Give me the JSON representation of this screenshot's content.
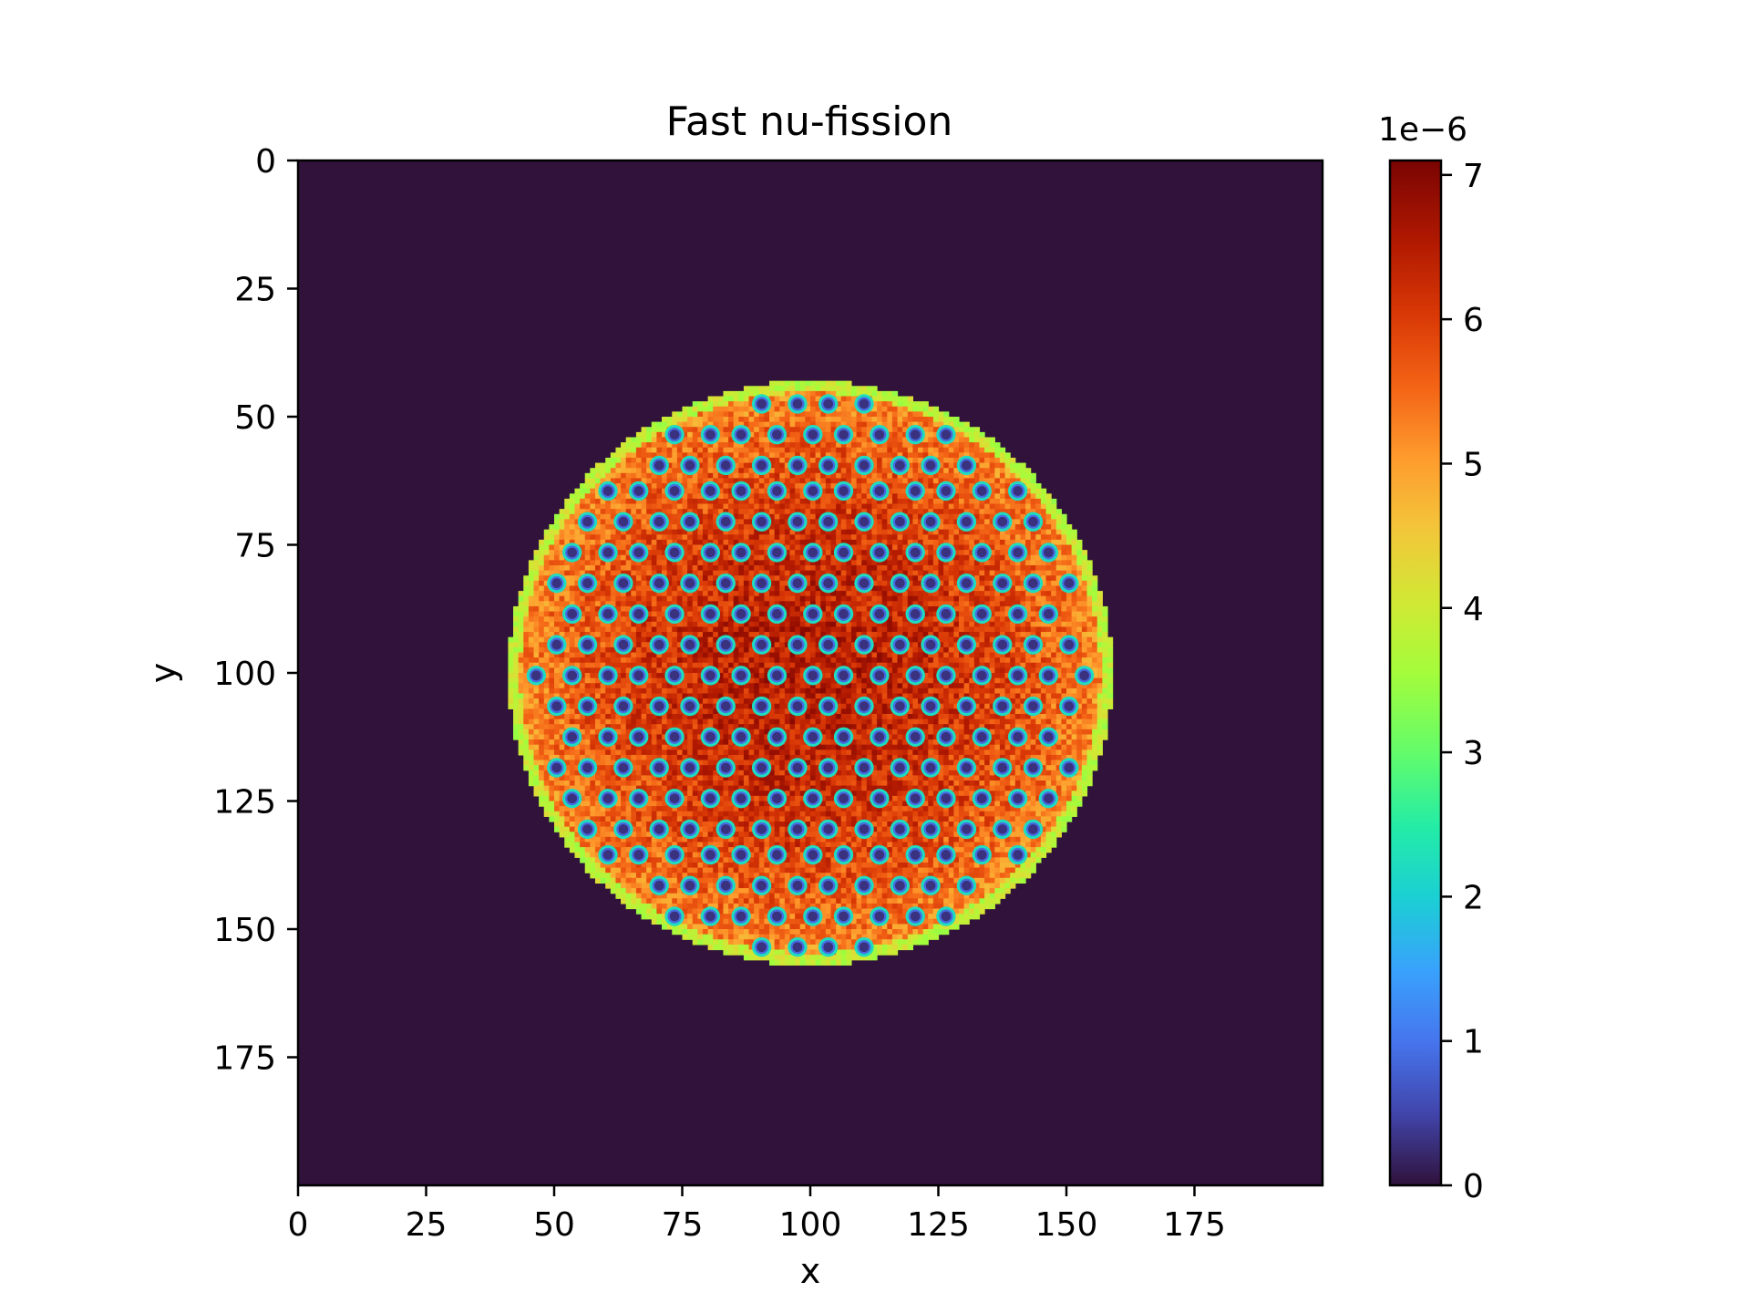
{
  "chart_data": {
    "type": "heatmap",
    "title": "Fast nu-fission",
    "xlabel": "x",
    "ylabel": "y",
    "grid_size": [
      200,
      200
    ],
    "xlim": [
      0,
      200
    ],
    "ylim": [
      200,
      0
    ],
    "x_ticks": [
      0,
      25,
      50,
      75,
      100,
      125,
      150,
      175
    ],
    "x_tick_labels": [
      "0",
      "25",
      "50",
      "75",
      "100",
      "125",
      "150",
      "175"
    ],
    "y_ticks": [
      0,
      25,
      50,
      75,
      100,
      125,
      150,
      175
    ],
    "y_tick_labels": [
      "0",
      "25",
      "50",
      "75",
      "100",
      "125",
      "150",
      "175"
    ],
    "background_value": 0,
    "core": {
      "center": [
        100,
        100
      ],
      "radius_y": 57,
      "radius_x": 59,
      "field_range": [
        4.5,
        7.0
      ],
      "pin_value": 0.3,
      "pin_rows": [
        {
          "y": 47,
          "x": [
            90,
            97,
            103,
            110
          ]
        },
        {
          "y": 53,
          "x": [
            73,
            80,
            86,
            93,
            100,
            106,
            113,
            120,
            126
          ]
        },
        {
          "y": 59,
          "x": [
            70,
            76,
            83,
            90,
            97,
            103,
            110,
            117,
            123,
            130
          ]
        },
        {
          "y": 64,
          "x": [
            60,
            66,
            73,
            80,
            86,
            93,
            100,
            106,
            113,
            120,
            126,
            133,
            140
          ]
        },
        {
          "y": 70,
          "x": [
            56,
            63,
            70,
            76,
            83,
            90,
            97,
            103,
            110,
            117,
            123,
            130,
            137,
            143
          ]
        },
        {
          "y": 76,
          "x": [
            53,
            60,
            66,
            73,
            80,
            86,
            93,
            100,
            106,
            113,
            120,
            126,
            133,
            140,
            146
          ]
        },
        {
          "y": 82,
          "x": [
            50,
            56,
            63,
            70,
            76,
            83,
            90,
            97,
            103,
            110,
            117,
            123,
            130,
            137,
            143,
            150
          ]
        },
        {
          "y": 88,
          "x": [
            53,
            60,
            66,
            73,
            80,
            86,
            93,
            100,
            106,
            113,
            120,
            126,
            133,
            140,
            146
          ]
        },
        {
          "y": 94,
          "x": [
            50,
            56,
            63,
            70,
            76,
            83,
            90,
            97,
            103,
            110,
            117,
            123,
            130,
            137,
            143,
            150
          ]
        },
        {
          "y": 100,
          "x": [
            46,
            53,
            60,
            66,
            73,
            80,
            86,
            93,
            100,
            106,
            113,
            120,
            126,
            133,
            140,
            146,
            153
          ]
        },
        {
          "y": 106,
          "x": [
            50,
            56,
            63,
            70,
            76,
            83,
            90,
            97,
            103,
            110,
            117,
            123,
            130,
            137,
            143,
            150
          ]
        },
        {
          "y": 112,
          "x": [
            53,
            60,
            66,
            73,
            80,
            86,
            93,
            100,
            106,
            113,
            120,
            126,
            133,
            140,
            146
          ]
        },
        {
          "y": 118,
          "x": [
            50,
            56,
            63,
            70,
            76,
            83,
            90,
            97,
            103,
            110,
            117,
            123,
            130,
            137,
            143,
            150
          ]
        },
        {
          "y": 124,
          "x": [
            53,
            60,
            66,
            73,
            80,
            86,
            93,
            100,
            106,
            113,
            120,
            126,
            133,
            140,
            146
          ]
        },
        {
          "y": 130,
          "x": [
            56,
            63,
            70,
            76,
            83,
            90,
            97,
            103,
            110,
            117,
            123,
            130,
            137,
            143
          ]
        },
        {
          "y": 135,
          "x": [
            60,
            66,
            73,
            80,
            86,
            93,
            100,
            106,
            113,
            120,
            126,
            133,
            140
          ]
        },
        {
          "y": 141,
          "x": [
            70,
            76,
            83,
            90,
            97,
            103,
            110,
            117,
            123,
            130
          ]
        },
        {
          "y": 147,
          "x": [
            73,
            80,
            86,
            93,
            100,
            106,
            113,
            120,
            126
          ]
        },
        {
          "y": 153,
          "x": [
            90,
            97,
            103,
            110
          ]
        }
      ]
    },
    "colorbar": {
      "colormap": "turbo",
      "min": 0,
      "max": 7.1,
      "ticks": [
        0,
        1,
        2,
        3,
        4,
        5,
        6,
        7
      ],
      "tick_labels": [
        "0",
        "1",
        "2",
        "3",
        "4",
        "5",
        "6",
        "7"
      ],
      "offset_label": "1e−6",
      "background_color": "#30123b"
    }
  }
}
